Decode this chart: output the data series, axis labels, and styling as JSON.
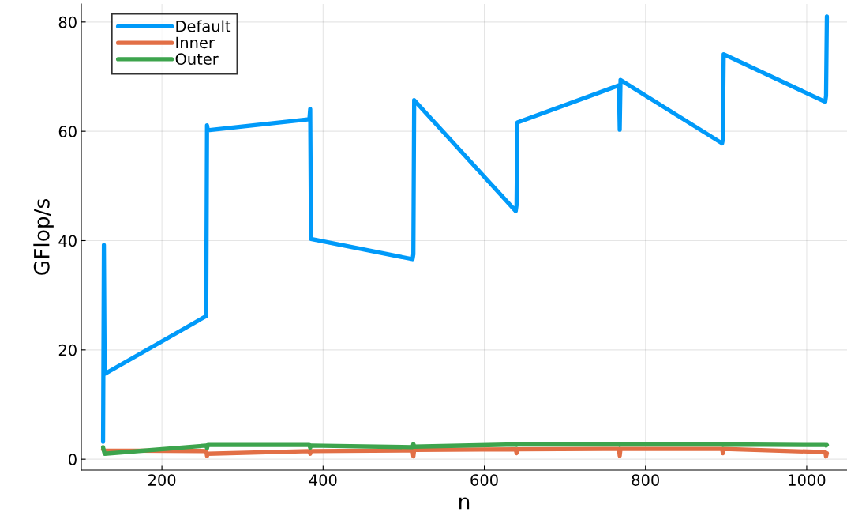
{
  "chart_data": {
    "type": "line",
    "xlabel": "n",
    "ylabel": "GFlop/s",
    "x": [
      127,
      128,
      129,
      255,
      256,
      257,
      383,
      384,
      385,
      511,
      512,
      513,
      639,
      640,
      641,
      767,
      768,
      769,
      895,
      896,
      897,
      1023,
      1024,
      1025
    ],
    "series": [
      {
        "name": "Default",
        "color": "#009af9",
        "values": [
          3.2,
          39.2,
          15.6,
          26.2,
          61.1,
          60.2,
          62.2,
          64.1,
          40.3,
          36.6,
          37.5,
          65.7,
          45.4,
          46.5,
          61.6,
          68.4,
          60.3,
          69.4,
          57.8,
          58.5,
          74.1,
          65.4,
          66.5,
          81.0
        ]
      },
      {
        "name": "Inner",
        "color": "#e26f46",
        "values": [
          1.8,
          1.7,
          1.6,
          1.5,
          0.6,
          1.0,
          1.5,
          1.0,
          1.5,
          1.6,
          0.5,
          1.7,
          1.8,
          1.1,
          1.8,
          1.9,
          0.6,
          1.9,
          1.9,
          1.1,
          1.9,
          1.3,
          0.5,
          1.1
        ]
      },
      {
        "name": "Outer",
        "color": "#3da44d",
        "values": [
          2.2,
          1.5,
          1.0,
          2.5,
          2.0,
          2.6,
          2.6,
          2.1,
          2.5,
          2.2,
          2.8,
          2.3,
          2.7,
          2.6,
          2.7,
          2.7,
          2.6,
          2.7,
          2.7,
          2.6,
          2.7,
          2.6,
          2.5,
          2.6
        ]
      }
    ],
    "xlim": [
      100,
      1050
    ],
    "xticks": [
      200,
      400,
      600,
      800,
      1000
    ],
    "ylim": [
      -2,
      83.3
    ],
    "yticks": [
      0,
      20,
      40,
      60,
      80
    ],
    "grid": true,
    "legend": "top left",
    "line_style": "solid"
  }
}
